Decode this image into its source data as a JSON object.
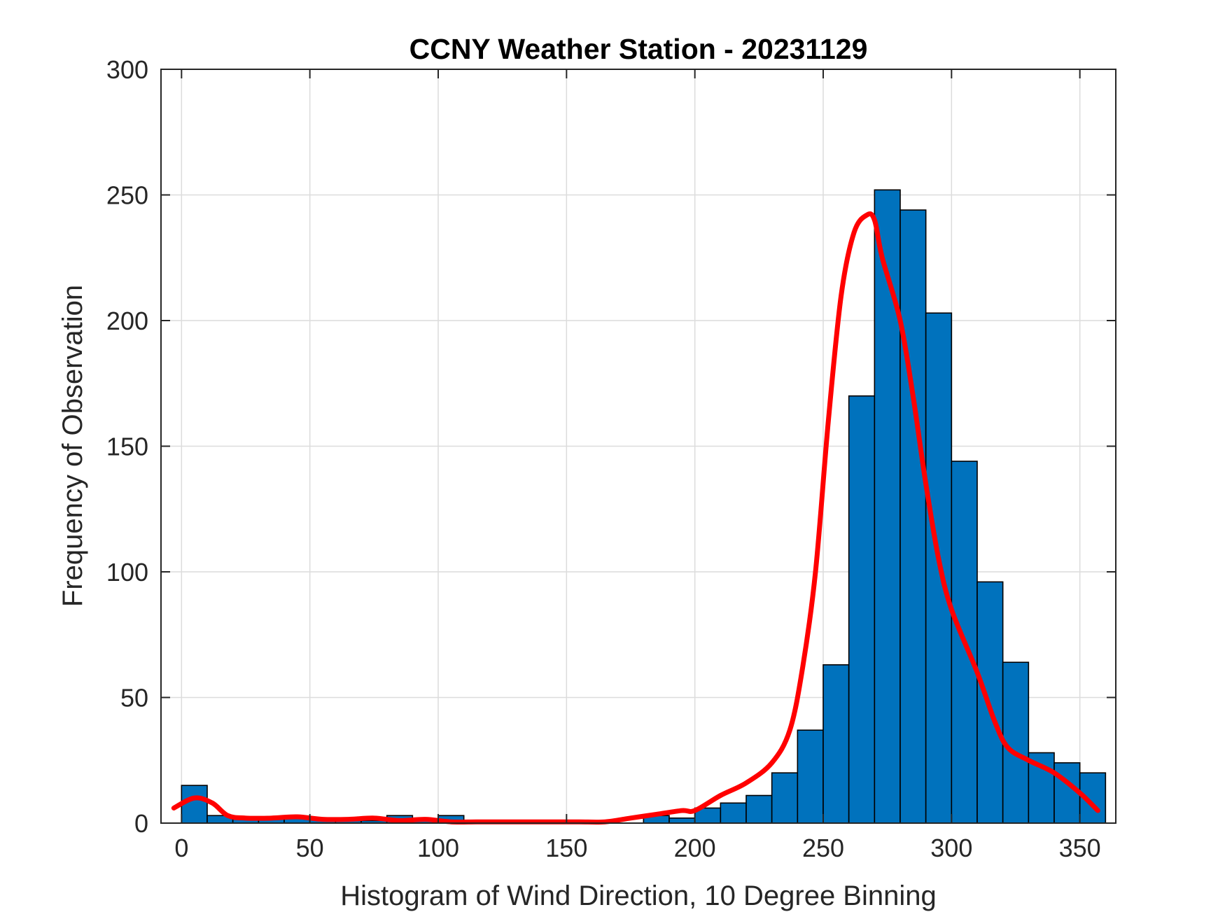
{
  "chart_data": {
    "type": "bar",
    "title": "CCNY Weather Station - 20231129",
    "xlabel": "Histogram of Wind Direction, 10 Degree Binning",
    "ylabel": "Frequency of Observation",
    "xlim": [
      -8,
      364
    ],
    "ylim": [
      0,
      300
    ],
    "xticks": [
      0,
      50,
      100,
      150,
      200,
      250,
      300,
      350
    ],
    "yticks": [
      0,
      50,
      100,
      150,
      200,
      250,
      300
    ],
    "grid": true,
    "bin_width": 10,
    "bin_edges": [
      0,
      10,
      20,
      30,
      40,
      50,
      60,
      70,
      80,
      90,
      100,
      110,
      120,
      130,
      140,
      150,
      160,
      170,
      180,
      190,
      200,
      210,
      220,
      230,
      240,
      250,
      260,
      270,
      280,
      290,
      300,
      310,
      320,
      330,
      340,
      350,
      360
    ],
    "values": [
      15,
      3,
      2,
      2,
      2,
      2,
      1,
      1,
      3,
      1,
      3,
      0,
      0,
      0,
      0,
      0,
      0,
      0,
      3,
      2,
      6,
      8,
      11,
      20,
      37,
      63,
      170,
      252,
      244,
      203,
      144,
      96,
      64,
      28,
      24,
      20
    ],
    "bar_color": "#0072BD",
    "curve": {
      "color": "#FF0000",
      "x": [
        -3,
        5,
        12,
        18,
        25,
        35,
        45,
        55,
        65,
        75,
        85,
        95,
        105,
        115,
        125,
        135,
        145,
        155,
        165,
        175,
        185,
        195,
        200,
        210,
        220,
        230,
        237,
        242,
        247,
        252,
        257,
        262,
        267,
        270,
        273,
        280,
        285,
        290,
        295,
        300,
        310,
        317,
        322,
        330,
        340,
        350,
        357
      ],
      "y": [
        6,
        10,
        8,
        3,
        2,
        2,
        2.5,
        1.5,
        1.5,
        2,
        1,
        1.5,
        0.5,
        0.5,
        0.5,
        0.5,
        0.5,
        0.5,
        0.5,
        2,
        3.5,
        5,
        5,
        11,
        16,
        24,
        37,
        62,
        100,
        160,
        210,
        235,
        242,
        240,
        225,
        200,
        170,
        135,
        105,
        85,
        60,
        40,
        30,
        25,
        20,
        12,
        5
      ]
    }
  }
}
